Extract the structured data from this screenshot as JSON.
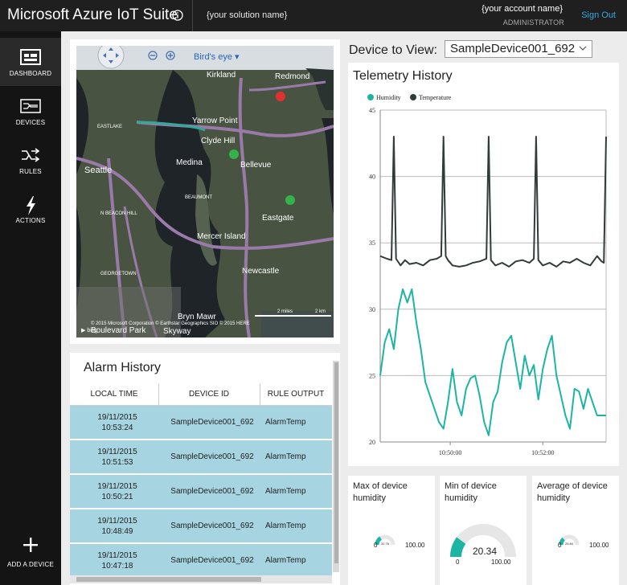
{
  "header": {
    "brand": "Microsoft Azure IoT Suite",
    "solution_name": "{your solution name}",
    "account_name": "{your account name}",
    "role": "ADMINISTRATOR",
    "signout": "Sign Out"
  },
  "sidebar": {
    "items": [
      {
        "label": "DASHBOARD",
        "icon": "dashboard-icon"
      },
      {
        "label": "DEVICES",
        "icon": "devices-icon"
      },
      {
        "label": "RULES",
        "icon": "rules-icon"
      },
      {
        "label": "ACTIONS",
        "icon": "actions-icon"
      }
    ],
    "add_device": "ADD A DEVICE"
  },
  "map": {
    "view_mode": "Bird's eye",
    "labels": [
      "Kirkland",
      "Redmond",
      "Yarrow Point",
      "Clyde Hill",
      "Seattle",
      "Medina",
      "Bellevue",
      "Eastgate",
      "Mercer Island",
      "Newcastle",
      "EASTLAKE",
      "BEAUMONT",
      "N BEACON HILL",
      "GEORGETOWN",
      "Bryn Mawr",
      "Skyway",
      "Boulevard Park"
    ],
    "copyright": "© 2015 Microsoft Corporation  © Earthstar Geographics SIO  © 2015 HERE",
    "scale_miles": "2 miles",
    "scale_km": "2 km"
  },
  "alarm_history": {
    "title": "Alarm History",
    "columns": [
      "LOCAL TIME",
      "DEVICE ID",
      "RULE OUTPUT"
    ],
    "rows": [
      {
        "date": "19/11/2015",
        "time": "10:53:24",
        "device": "SampleDevice001_692",
        "rule": "AlarmTemp"
      },
      {
        "date": "19/11/2015",
        "time": "10:51:53",
        "device": "SampleDevice001_692",
        "rule": "AlarmTemp"
      },
      {
        "date": "19/11/2015",
        "time": "10:50:21",
        "device": "SampleDevice001_692",
        "rule": "AlarmTemp"
      },
      {
        "date": "19/11/2015",
        "time": "10:48:49",
        "device": "SampleDevice001_692",
        "rule": "AlarmTemp"
      },
      {
        "date": "19/11/2015",
        "time": "10:47:18",
        "device": "SampleDevice001_692",
        "rule": "AlarmTemp"
      }
    ]
  },
  "device_selector": {
    "label": "Device to View:",
    "value": "SampleDevice001_692"
  },
  "telemetry": {
    "title": "Telemetry History"
  },
  "chart_data": {
    "type": "line",
    "title": "Telemetry History",
    "legend_position": "top-left",
    "ylim": [
      20,
      45
    ],
    "yticks": [
      20,
      25,
      30,
      35,
      40,
      45
    ],
    "xlim": [
      0,
      100
    ],
    "xticks": [
      {
        "x": 31,
        "label": "10:50:00"
      },
      {
        "x": 72,
        "label": "10:52:00"
      }
    ],
    "grid": true,
    "series": [
      {
        "name": "Humidity",
        "color": "#1cb5a3",
        "x": [
          0,
          2,
          4,
          6,
          8,
          10,
          12,
          14,
          16,
          18,
          20,
          22,
          24,
          26,
          28,
          30,
          32,
          34,
          36,
          38,
          40,
          42,
          44,
          46,
          48,
          50,
          52,
          54,
          56,
          58,
          60,
          62,
          64,
          66,
          68,
          70,
          72,
          74,
          76,
          78,
          80,
          82,
          84,
          86,
          88,
          90,
          92,
          94,
          96,
          98,
          100
        ],
        "values": [
          25,
          27.5,
          28.5,
          27,
          30,
          31.5,
          30.5,
          31.5,
          29,
          27,
          24.5,
          23.5,
          22.5,
          21.5,
          21,
          23,
          25.5,
          23,
          22,
          24,
          24.8,
          25,
          23.5,
          21.5,
          20.5,
          23,
          23.8,
          26,
          27.5,
          28,
          26,
          24,
          26.5,
          25,
          25.8,
          23.2,
          25.5,
          27,
          28,
          25,
          23.5,
          22,
          21,
          24,
          23.8,
          22.5,
          24,
          23,
          22,
          22,
          22
        ]
      },
      {
        "name": "Temperature",
        "color": "#333a3a",
        "x": [
          0,
          3,
          5,
          6,
          7,
          9,
          11,
          13,
          16,
          19,
          22,
          25,
          27,
          28,
          29,
          30,
          32,
          35,
          38,
          41,
          44,
          47,
          48,
          49,
          51,
          54,
          57,
          60,
          63,
          66,
          68,
          69,
          70,
          72,
          75,
          78,
          81,
          84,
          87,
          90,
          93,
          96,
          98,
          99,
          100
        ],
        "values": [
          34,
          33.8,
          33.7,
          43,
          33.8,
          33.3,
          33.7,
          33.4,
          33.5,
          33.3,
          33.7,
          33.8,
          34,
          43,
          34,
          33.7,
          33.3,
          33.2,
          33.3,
          33.5,
          33.6,
          33.8,
          43,
          33.7,
          33.3,
          33.5,
          33.2,
          33.6,
          33.7,
          33.5,
          33.8,
          43,
          33.7,
          33.3,
          33.5,
          33.2,
          33.6,
          33.5,
          33.8,
          33.5,
          33.3,
          34,
          33.6,
          33.5,
          43
        ]
      }
    ]
  },
  "gauges": [
    {
      "title": "Max of device humidity",
      "min": "0",
      "max": "100.00",
      "value": "31.76",
      "fraction": 0.3176
    },
    {
      "title": "Min of device humidity",
      "min": "0",
      "max": "100.00",
      "value": "20.34",
      "fraction": 0.2034
    },
    {
      "title": "Average of device humidity",
      "min": "0",
      "max": "100.00",
      "value": "25.84",
      "fraction": 0.2584
    }
  ],
  "colors": {
    "accent": "#35a9e0",
    "alarm_row": "#a6d4e1",
    "humidity": "#1cb5a3",
    "temperature": "#333a3a",
    "gauge_track": "#e6e6e6",
    "alarm_pin": "#e03030",
    "device_pin": "#35b24a"
  }
}
